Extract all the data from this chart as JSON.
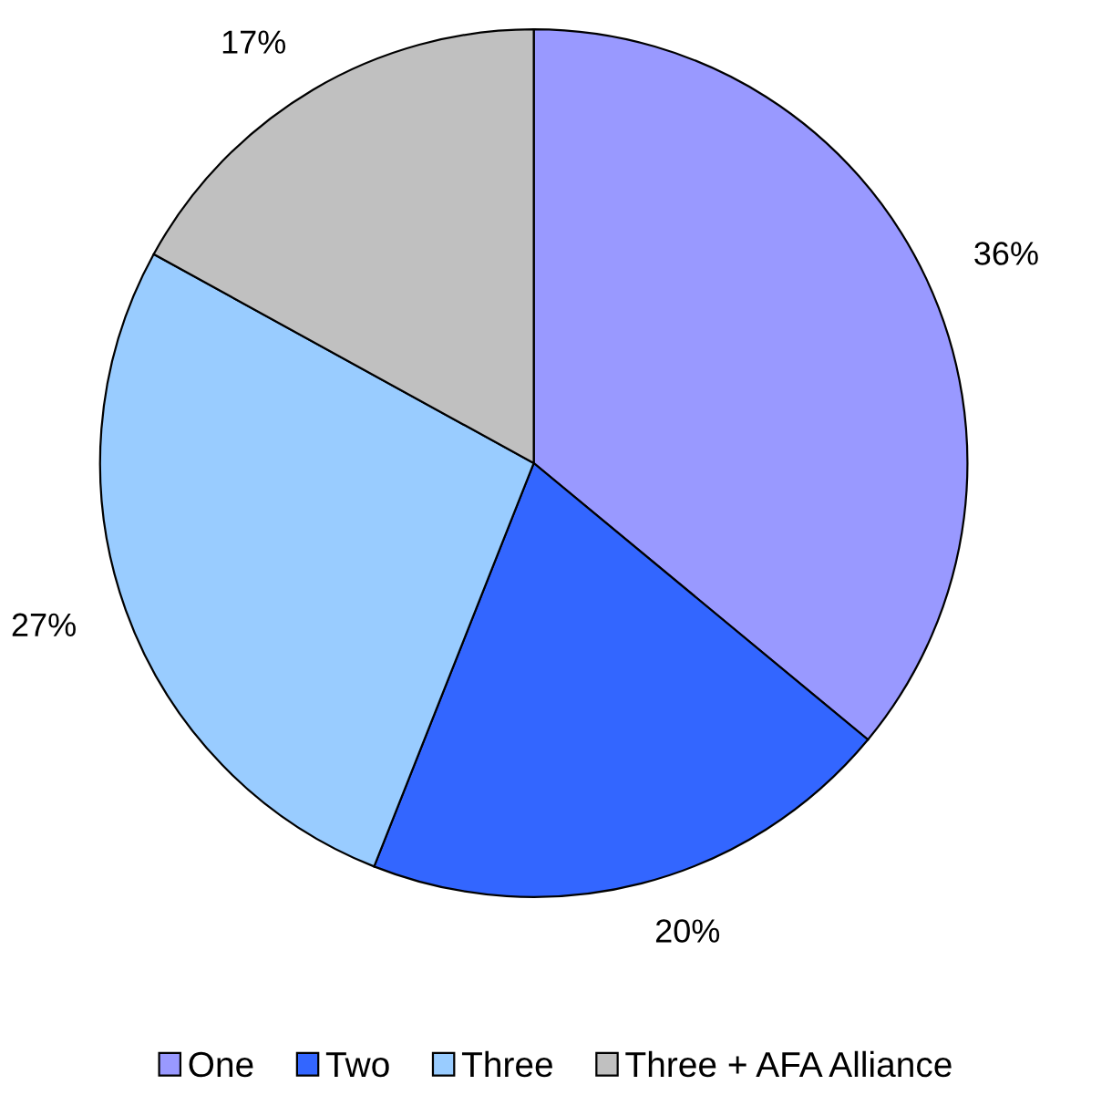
{
  "chart_data": {
    "type": "pie",
    "categories": [
      "One",
      "Two",
      "Three",
      "Three + AFA Alliance"
    ],
    "values": [
      36,
      20,
      27,
      17
    ],
    "value_labels": [
      "36%",
      "20%",
      "27%",
      "17%"
    ],
    "colors": [
      "#9999ff",
      "#3366ff",
      "#99ccff",
      "#c0c0c0"
    ],
    "legend": "bottom"
  }
}
